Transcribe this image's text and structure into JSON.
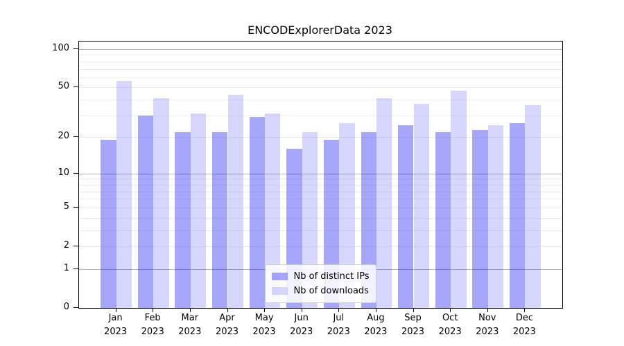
{
  "title": "ENCODExplorerData 2023",
  "chart_data": {
    "type": "bar",
    "title": "ENCODExplorerData 2023",
    "scale": "log10(1+y)",
    "categories": [
      "Jan",
      "Feb",
      "Mar",
      "Apr",
      "May",
      "Jun",
      "Jul",
      "Aug",
      "Sep",
      "Oct",
      "Nov",
      "Dec"
    ],
    "x_year_label": "2023",
    "series": [
      {
        "name": "Nb of distinct IPs",
        "color": "rgba(0,0,240,0.35)",
        "values": [
          19,
          30,
          22,
          22,
          29,
          16,
          19,
          22,
          25,
          22,
          23,
          26
        ]
      },
      {
        "name": "Nb of downloads",
        "color": "rgba(0,0,240,0.155)",
        "values": [
          56,
          41,
          31,
          44,
          31,
          22,
          26,
          41,
          37,
          47,
          25,
          36
        ]
      }
    ],
    "y_tick_values": [
      100,
      50,
      20,
      10,
      5,
      2,
      1,
      0
    ],
    "y_tick_labels": [
      "100",
      "50",
      "20",
      "10",
      "5",
      "2",
      "1",
      "0"
    ],
    "ylim": [
      0,
      113
    ],
    "grid_minor_values": [
      2,
      3,
      4,
      5,
      6,
      7,
      8,
      9,
      20,
      30,
      40,
      50,
      60,
      70,
      80,
      90
    ],
    "grid_major_values": [
      1,
      10,
      100
    ],
    "legend_position": "lower center",
    "colors": {
      "frame": "#000000",
      "grid_minor": "#ebebeb",
      "grid_major": "#b3b3b3",
      "background": "#ffffff"
    }
  }
}
